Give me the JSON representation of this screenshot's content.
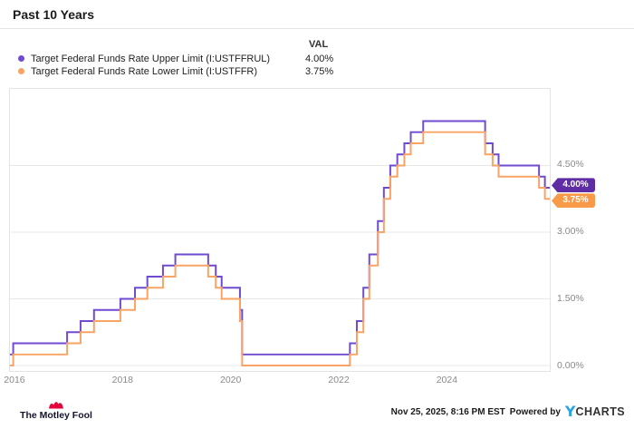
{
  "header": {
    "title": "Past 10 Years"
  },
  "legend": {
    "val_header": "VAL",
    "items": [
      {
        "label": "Target Federal Funds Rate Upper Limit (I:USTFFRUL)",
        "value": "4.00%",
        "color": "#6e4bd1"
      },
      {
        "label": "Target Federal Funds Rate Lower Limit (I:USTFFR)",
        "value": "3.75%",
        "color": "#f9a364"
      }
    ]
  },
  "chart_data": {
    "type": "line",
    "title": "Past 10 Years",
    "step": true,
    "grid": "horizontal",
    "legend_position": "top-left",
    "x_range": [
      2015.9,
      2025.92
    ],
    "y_range": [
      -0.122,
      6.224
    ],
    "x_ticks": [
      2016,
      2018,
      2020,
      2022,
      2024
    ],
    "x_tick_labels": [
      "2016",
      "2018",
      "2020",
      "2022",
      "2024"
    ],
    "y_ticks": [
      0,
      1.5,
      3,
      4.5
    ],
    "y_tick_labels": [
      "0.00%",
      "1.50%",
      "3.00%",
      "4.50%"
    ],
    "series": [
      {
        "name": "Target Federal Funds Rate Upper Limit (I:USTFFRUL)",
        "color": "#6e4bd1",
        "badge_color": "#5f2ca5",
        "end_label": "4.00%",
        "points": [
          [
            2015.9,
            0.25
          ],
          [
            2015.96,
            0.5
          ],
          [
            2016.96,
            0.75
          ],
          [
            2017.21,
            1.0
          ],
          [
            2017.46,
            1.25
          ],
          [
            2017.95,
            1.5
          ],
          [
            2018.22,
            1.75
          ],
          [
            2018.45,
            2.0
          ],
          [
            2018.74,
            2.25
          ],
          [
            2018.97,
            2.5
          ],
          [
            2019.58,
            2.25
          ],
          [
            2019.72,
            2.0
          ],
          [
            2019.83,
            1.75
          ],
          [
            2020.17,
            1.25
          ],
          [
            2020.21,
            0.25
          ],
          [
            2022.21,
            0.5
          ],
          [
            2022.34,
            1.0
          ],
          [
            2022.46,
            1.75
          ],
          [
            2022.57,
            2.5
          ],
          [
            2022.73,
            3.25
          ],
          [
            2022.84,
            4.0
          ],
          [
            2022.96,
            4.5
          ],
          [
            2023.09,
            4.75
          ],
          [
            2023.22,
            5.0
          ],
          [
            2023.34,
            5.25
          ],
          [
            2023.57,
            5.5
          ],
          [
            2024.72,
            5.0
          ],
          [
            2024.86,
            4.75
          ],
          [
            2024.97,
            4.5
          ],
          [
            2025.72,
            4.25
          ],
          [
            2025.83,
            4.0
          ]
        ]
      },
      {
        "name": "Target Federal Funds Rate Lower Limit (I:USTFFR)",
        "color": "#f9a364",
        "badge_color": "#f89a47",
        "end_label": "3.75%",
        "points": [
          [
            2015.9,
            0.0
          ],
          [
            2015.96,
            0.25
          ],
          [
            2016.96,
            0.5
          ],
          [
            2017.21,
            0.75
          ],
          [
            2017.46,
            1.0
          ],
          [
            2017.95,
            1.25
          ],
          [
            2018.22,
            1.5
          ],
          [
            2018.45,
            1.75
          ],
          [
            2018.74,
            2.0
          ],
          [
            2018.97,
            2.25
          ],
          [
            2019.58,
            2.0
          ],
          [
            2019.72,
            1.75
          ],
          [
            2019.83,
            1.5
          ],
          [
            2020.17,
            1.0
          ],
          [
            2020.21,
            0.0
          ],
          [
            2022.21,
            0.25
          ],
          [
            2022.34,
            0.75
          ],
          [
            2022.46,
            1.5
          ],
          [
            2022.57,
            2.25
          ],
          [
            2022.73,
            3.0
          ],
          [
            2022.84,
            3.75
          ],
          [
            2022.96,
            4.25
          ],
          [
            2023.09,
            4.5
          ],
          [
            2023.22,
            4.75
          ],
          [
            2023.34,
            5.0
          ],
          [
            2023.57,
            5.25
          ],
          [
            2024.72,
            4.75
          ],
          [
            2024.86,
            4.5
          ],
          [
            2024.97,
            4.25
          ],
          [
            2025.72,
            4.0
          ],
          [
            2025.83,
            3.75
          ]
        ]
      }
    ]
  },
  "footer": {
    "brand": "The Motley Fool",
    "timestamp": "Nov 25, 2025, 8:16 PM EST",
    "powered_by": "Powered by",
    "provider_y": "Y",
    "provider_rest": "CHARTS"
  }
}
